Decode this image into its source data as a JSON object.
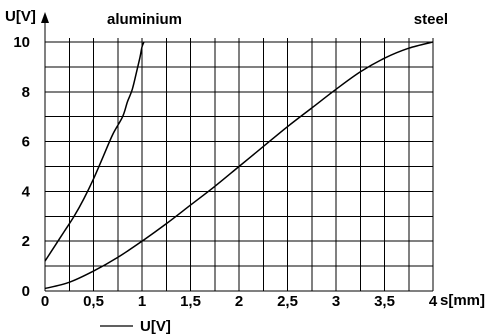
{
  "chart_data": {
    "type": "line",
    "xlabel": "s[mm]",
    "ylabel": "U[V]",
    "x_ticks": [
      "0",
      "0,5",
      "1",
      "1,5",
      "2",
      "2,5",
      "3",
      "3,5",
      "4"
    ],
    "y_ticks": [
      "0",
      "2",
      "4",
      "6",
      "8",
      "10"
    ],
    "xlim": [
      0,
      4
    ],
    "ylim": [
      0,
      10
    ],
    "grid": true,
    "grid_x_step": 0.25,
    "grid_y_step": 1,
    "legend": {
      "label": "U[V]",
      "placement": "bottom-left"
    },
    "series": [
      {
        "name": "aluminium",
        "label_placement": "top-left",
        "x": [
          0,
          0.1,
          0.2,
          0.3,
          0.4,
          0.5,
          0.6,
          0.7,
          0.8,
          0.85,
          0.9,
          0.95,
          0.98,
          1.0,
          1.02
        ],
        "y": [
          1.2,
          1.8,
          2.4,
          3.0,
          3.7,
          4.5,
          5.4,
          6.3,
          7.0,
          7.6,
          8.1,
          8.9,
          9.4,
          9.8,
          10.0
        ]
      },
      {
        "name": "steel",
        "label_placement": "top-right",
        "x": [
          0,
          0.25,
          0.5,
          0.75,
          1.0,
          1.25,
          1.5,
          1.75,
          2.0,
          2.25,
          2.5,
          2.75,
          3.0,
          3.25,
          3.5,
          3.75,
          4.0
        ],
        "y": [
          0.1,
          0.35,
          0.8,
          1.35,
          2.0,
          2.7,
          3.45,
          4.2,
          5.0,
          5.8,
          6.6,
          7.35,
          8.1,
          8.8,
          9.35,
          9.75,
          10.0
        ]
      }
    ]
  }
}
